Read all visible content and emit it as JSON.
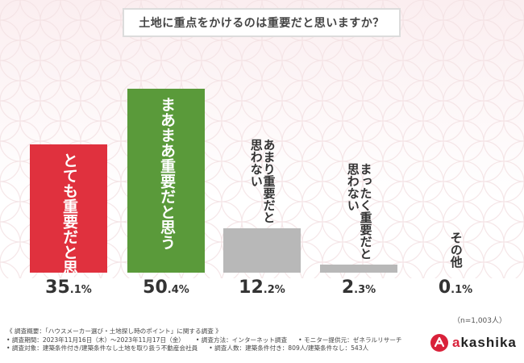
{
  "title": "土地に重点をかけるのは重要だと思いますか？",
  "colors": {
    "red": "#e0313e",
    "green": "#5a9a3a",
    "gray": "#b8b8b8",
    "pattern": "#f2dfe1"
  },
  "chart_data": {
    "type": "bar",
    "title": "土地に重点をかけるのは重要だと思いますか？",
    "categories": [
      "とても重要だと思う",
      "まあまあ重要だと思う",
      "あまり重要だと思わない",
      "まったく重要だと思わない",
      "その他"
    ],
    "labels": [
      "とても重要だと思う",
      "まあまあ重要だと思う",
      "あまり重要だと\n思わない",
      "まったく重要だと\n思わない",
      "その他"
    ],
    "values": [
      35.1,
      50.4,
      12.2,
      2.3,
      0.1
    ],
    "pct_int": [
      "35",
      "50",
      "12",
      "2",
      "0"
    ],
    "pct_dec": [
      ".1%",
      ".4%",
      ".2%",
      ".3%",
      ".1%"
    ],
    "bar_colors": [
      "#e0313e",
      "#5a9a3a",
      "#b8b8b8",
      "#b8b8b8",
      "#b8b8b8"
    ],
    "label_colors": [
      "#ffffff",
      "#ffffff",
      "#333333",
      "#333333",
      "#333333"
    ],
    "unit": "%",
    "ylim": [
      0,
      50.4
    ]
  },
  "sample_note": "（n=1,003人）",
  "footer": {
    "line1": "《 調査概要：「ハウスメーカー選び・土地探し時のポイント」に関する調査 》",
    "line2a": "• 調査期間：2023年11月16日（木）〜2023年11月17日（金）",
    "line2b": "• 調査方法：インターネット調査",
    "line2c": "• モニター提供元：ゼネラルリサーチ",
    "line3a": "• 調査対象：建築条件付き/建築条件なし土地を取り扱う不動産会社員",
    "line3b": "• 調査人数：建築条件付き：809人/建築条件なし：543人"
  },
  "logo": {
    "prefix": "a",
    "text": "kashika",
    "icon": "akashika-logo-icon"
  }
}
